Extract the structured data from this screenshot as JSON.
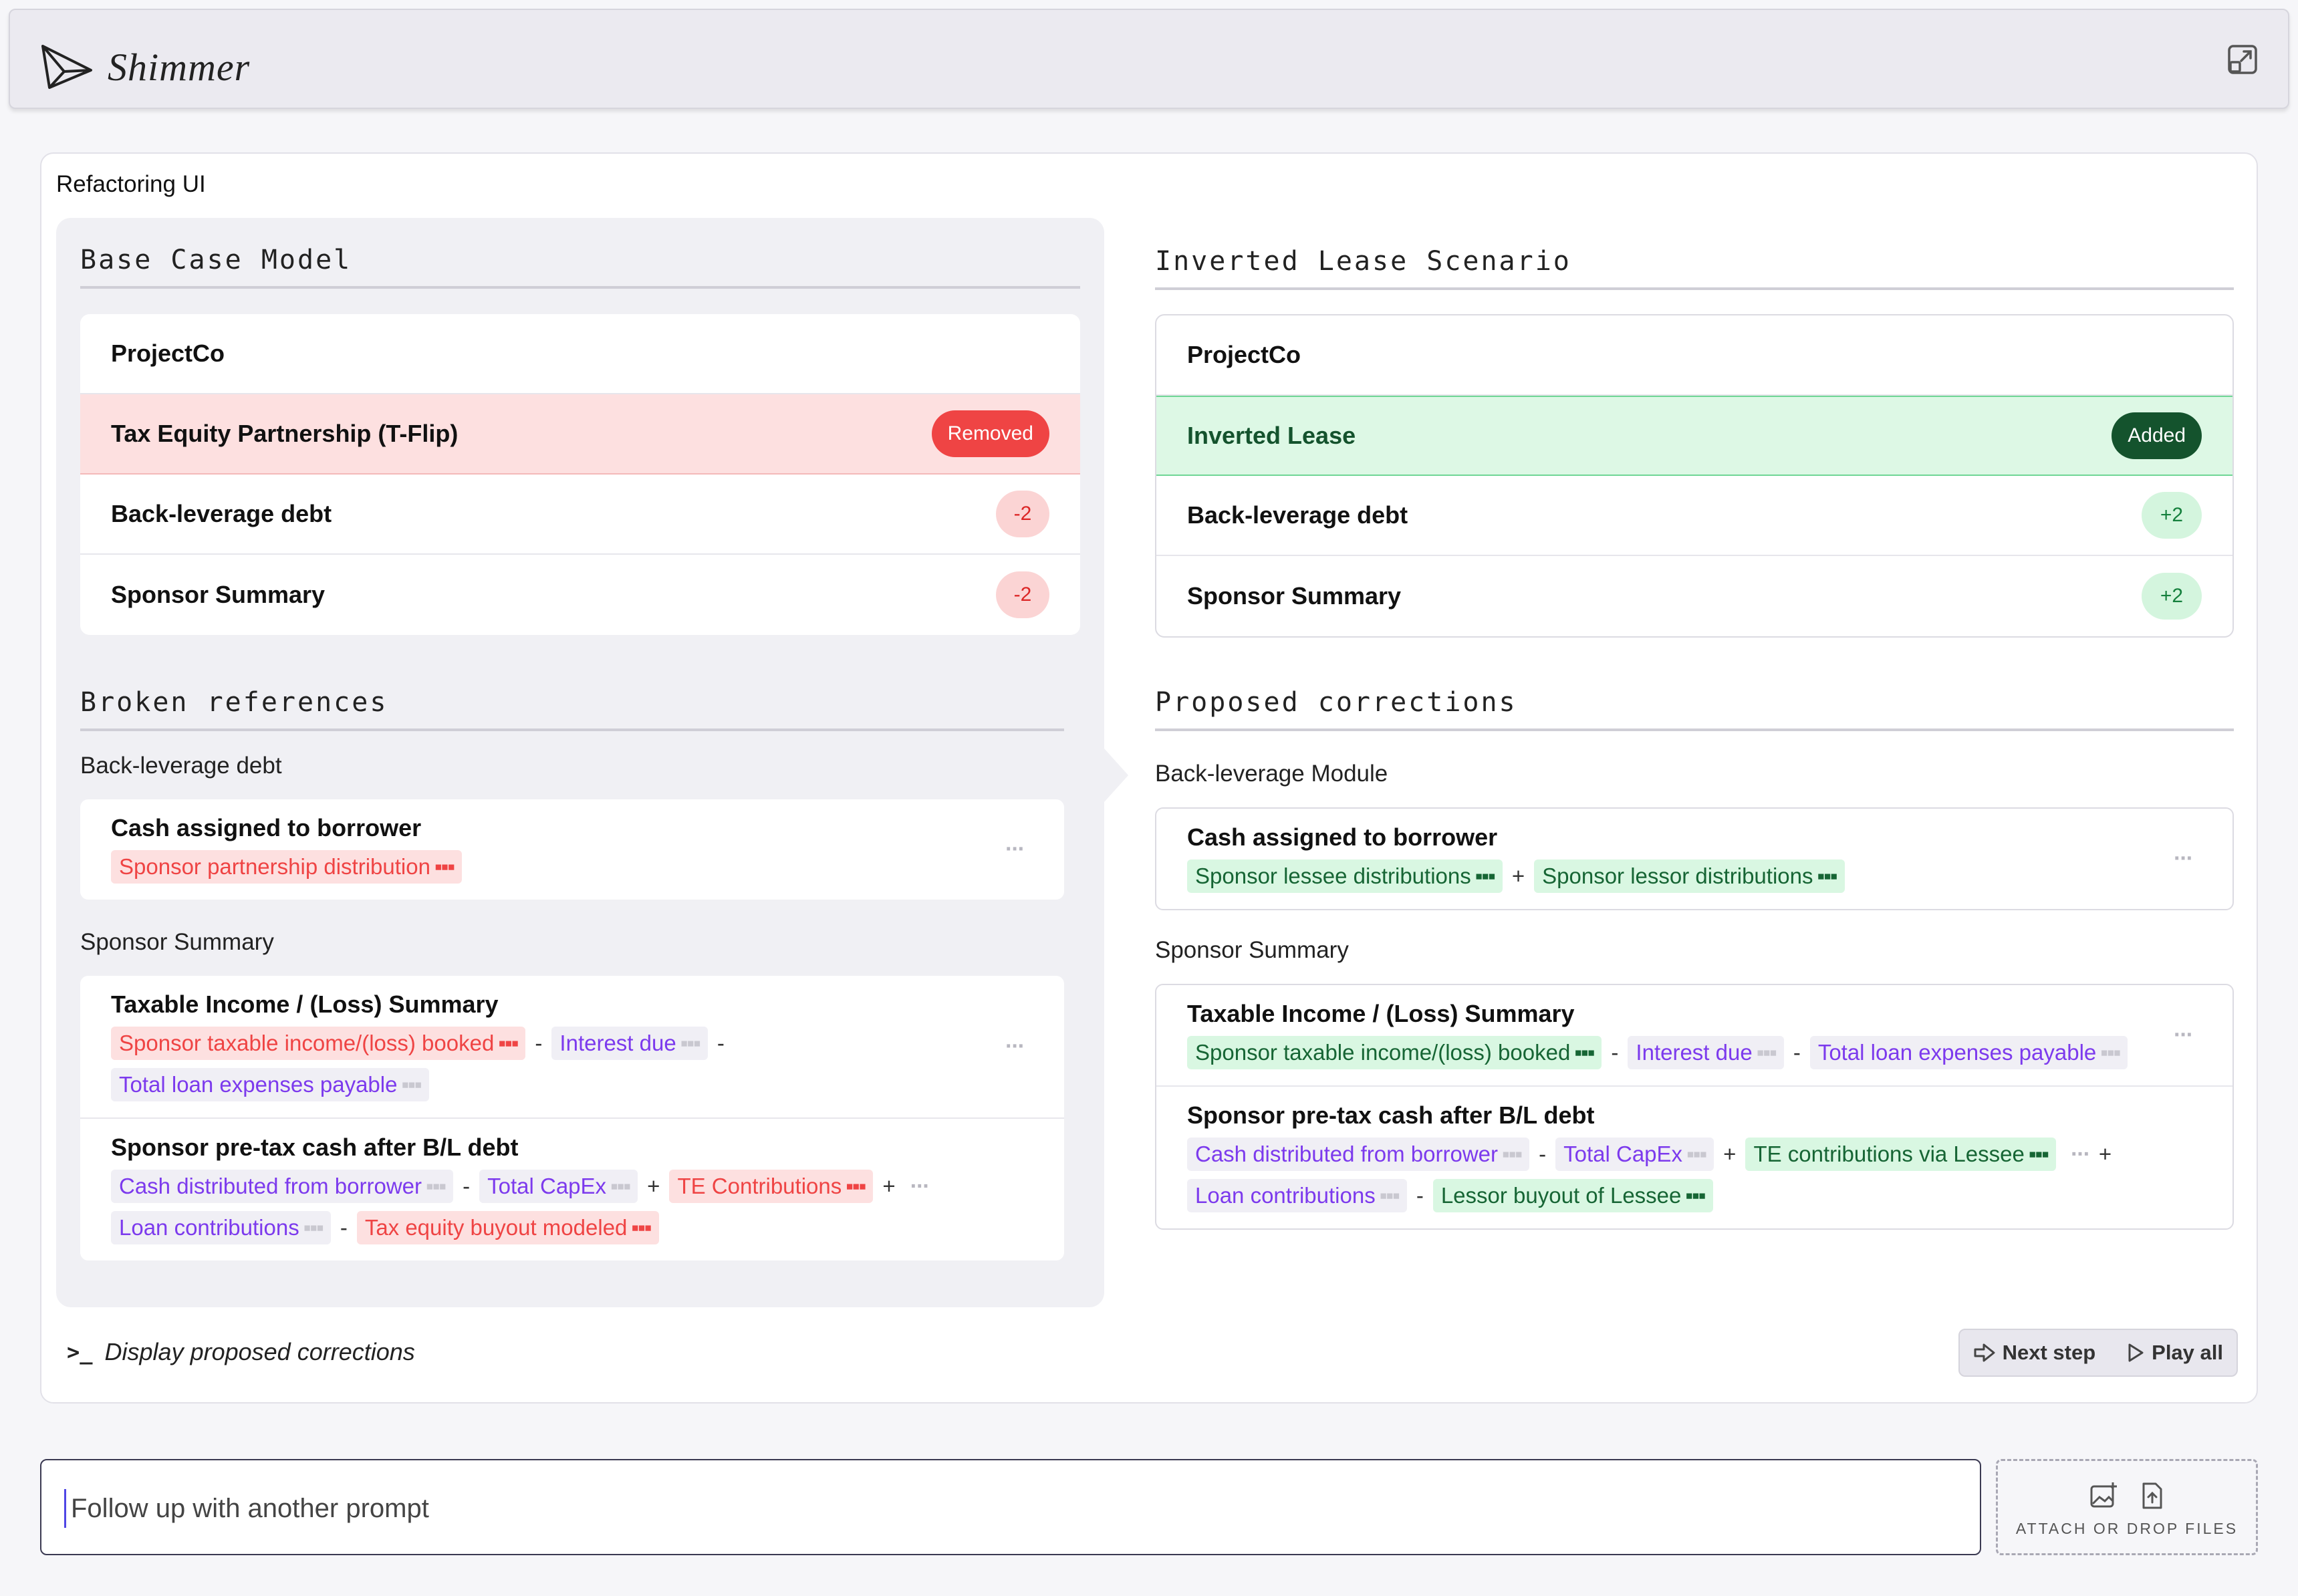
{
  "app": {
    "name": "Shimmer"
  },
  "panel": {
    "title": "Refactoring UI"
  },
  "left": {
    "heading": "Base Case Model",
    "rows": [
      {
        "name": "ProjectCo"
      },
      {
        "name": "Tax Equity Partnership (T-Flip)",
        "badge": "Removed"
      },
      {
        "name": "Back-leverage debt",
        "badge": "-2"
      },
      {
        "name": "Sponsor Summary",
        "badge": "-2"
      }
    ],
    "refs_heading": "Broken references",
    "group1": {
      "label": "Back-leverage debt",
      "item": {
        "title": "Cash assigned to borrower",
        "chip1": "Sponsor partnership distribution",
        "dots": "▪▪▪",
        "more": "···"
      }
    },
    "group2": {
      "label": "Sponsor Summary",
      "item1": {
        "title": "Taxable Income / (Loss) Summary",
        "chip1": "Sponsor taxable income/(loss) booked",
        "op1": "-",
        "chip2": "Interest due",
        "op2": "-",
        "chip3": "Total loan expenses payable",
        "more": "···"
      },
      "item2": {
        "title": "Sponsor pre-tax cash after B/L debt",
        "chip1": "Cash distributed from borrower",
        "op1": "-",
        "chip2": "Total CapEx",
        "op2": "+",
        "chip3": "TE Contributions",
        "op3": "+",
        "chip4": "Loan contributions",
        "op4": "-",
        "chip5": "Tax equity buyout modeled",
        "more": "···"
      }
    }
  },
  "right": {
    "heading": "Inverted Lease Scenario",
    "rows": [
      {
        "name": "ProjectCo"
      },
      {
        "name": "Inverted Lease",
        "badge": "Added"
      },
      {
        "name": "Back-leverage debt",
        "badge": "+2"
      },
      {
        "name": "Sponsor Summary",
        "badge": "+2"
      }
    ],
    "refs_heading": "Proposed corrections",
    "group1": {
      "label": "Back-leverage Module",
      "item": {
        "title": "Cash assigned to borrower",
        "chip1": "Sponsor lessee distributions",
        "op1": "+",
        "chip2": "Sponsor lessor distributions",
        "more": "···"
      }
    },
    "group2": {
      "label": "Sponsor Summary",
      "item1": {
        "title": "Taxable Income / (Loss) Summary",
        "chip1": "Sponsor taxable income/(loss) booked",
        "op1": "-",
        "chip2": "Interest due",
        "op2": "-",
        "chip3": "Total loan expenses payable",
        "more": "···"
      },
      "item2": {
        "title": "Sponsor pre-tax cash after B/L debt",
        "chip1": "Cash distributed from borrower",
        "op1": "-",
        "chip2": "Total CapEx",
        "op2": "+",
        "chip3": "TE contributions via Lessee",
        "op3": "+",
        "chip4": "Loan contributions",
        "op4": "-",
        "chip5": "Lessor buyout of Lessee",
        "more": "···"
      }
    }
  },
  "footer": {
    "display_link": "Display proposed corrections",
    "prompt_symbol": ">_",
    "next_step": "Next step",
    "play_all": "Play all"
  },
  "input": {
    "placeholder": "Follow up with another prompt"
  },
  "attach": {
    "label": "ATTACH OR DROP FILES"
  },
  "colors": {
    "removed": "#ef4444",
    "added": "#14532d",
    "accent": "#7c3aed"
  },
  "icons": {
    "logo": "paper-plane-icon",
    "expand": "expand-icon",
    "next": "next-step-icon",
    "play": "play-icon",
    "image": "image-add-icon",
    "upload": "file-upload-icon"
  }
}
